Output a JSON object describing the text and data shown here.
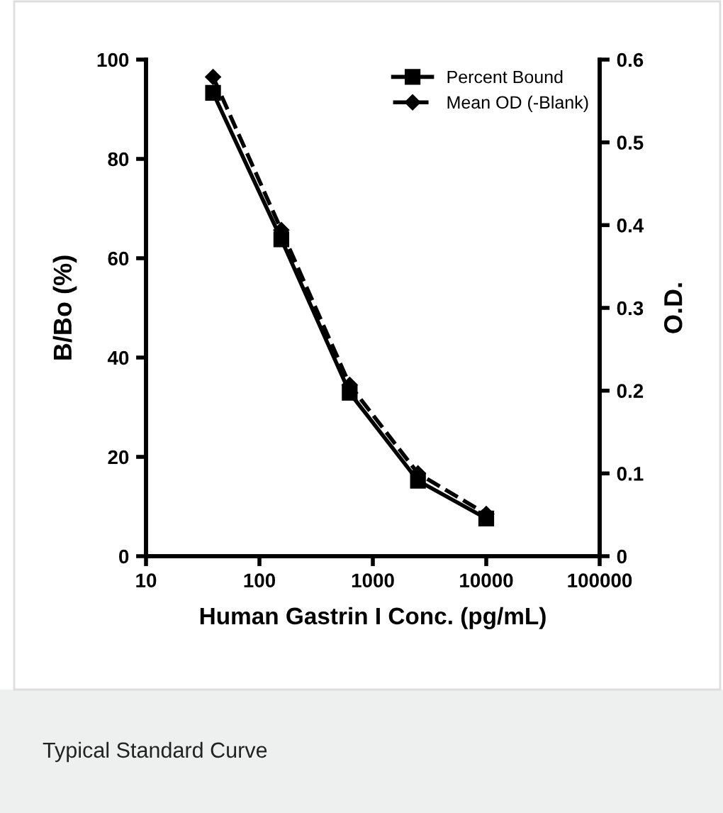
{
  "chart_data": {
    "type": "line",
    "x": [
      39,
      156,
      625,
      2500,
      10000
    ],
    "series": [
      {
        "name": "Percent Bound",
        "color": "#000000",
        "values": [
          93.3,
          63.8,
          32.9,
          15.2,
          7.6
        ],
        "marker": "square",
        "line_style": "solid"
      },
      {
        "name": "Mean OD (-Blank)",
        "color": "#000000",
        "values": [
          0.579,
          0.394,
          0.207,
          0.1,
          0.051
        ],
        "axis": "y2",
        "marker": "diamond",
        "line_style": "dashed"
      }
    ],
    "log": "x",
    "xlim": [
      10,
      100000
    ],
    "xticks": [
      10,
      100,
      1000,
      10000,
      100000
    ],
    "ylim": [
      0,
      100
    ],
    "yticks": [
      0,
      20,
      40,
      60,
      80,
      100
    ],
    "y2lim": [
      0,
      0.6
    ],
    "y2ticks": [
      0,
      0.1,
      0.2,
      0.3,
      0.4,
      0.5,
      0.6
    ],
    "xlabel": "Human Gastrin I Conc. (pg/mL)",
    "ylabel": "B/Bo (%)",
    "y2label": "O.D.",
    "legend": "top right",
    "grid": false,
    "annotations": [
      "Typical Standard Curve"
    ]
  }
}
